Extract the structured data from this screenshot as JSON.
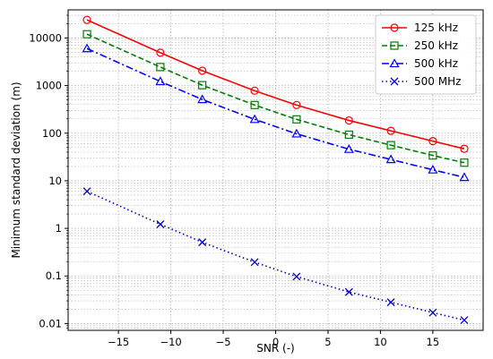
{
  "chart_data": {
    "type": "line",
    "title": "",
    "xlabel": "SNR (-)",
    "ylabel": "Minimum standard deviation (m)",
    "xlim": [
      -19.8,
      19.8
    ],
    "ylim": [
      0.0072,
      39000
    ],
    "yscale": "log",
    "grid": true,
    "legend_position": "top-right",
    "x": [
      -18,
      -11,
      -7,
      -2,
      2,
      7,
      11,
      15,
      18
    ],
    "x_ticks": [
      -15,
      -10,
      -5,
      0,
      5,
      10,
      15
    ],
    "x_tick_labels": [
      "−15",
      "−10",
      "−5",
      "0",
      "5",
      "10",
      "15"
    ],
    "y_ticks": [
      0.01,
      0.1,
      1,
      10,
      100,
      1000,
      10000
    ],
    "y_tick_labels": [
      "0.01",
      "0.1",
      "1",
      "10",
      "100",
      "1000",
      "10000"
    ],
    "series": [
      {
        "name": "125 kHz",
        "color": "#ff0000",
        "line_style": "solid",
        "marker": "circle",
        "values": [
          24000,
          4900,
          2050,
          780,
          390,
          185,
          112,
          68,
          47
        ]
      },
      {
        "name": "250 kHz",
        "color": "#008000",
        "line_style": "dashed",
        "marker": "square",
        "values": [
          12000,
          2450,
          1020,
          390,
          195,
          93,
          56,
          34,
          24
        ]
      },
      {
        "name": "500 kHz",
        "color": "#0000ff",
        "line_style": "dashdot",
        "marker": "triangle",
        "values": [
          6000,
          1220,
          510,
          195,
          97,
          46,
          28,
          17,
          11.8
        ]
      },
      {
        "name": "500 MHz",
        "color": "#0000cc",
        "line_style": "dotted",
        "marker": "x",
        "values": [
          6,
          1.22,
          0.51,
          0.195,
          0.097,
          0.046,
          0.028,
          0.017,
          0.0118
        ]
      }
    ]
  }
}
